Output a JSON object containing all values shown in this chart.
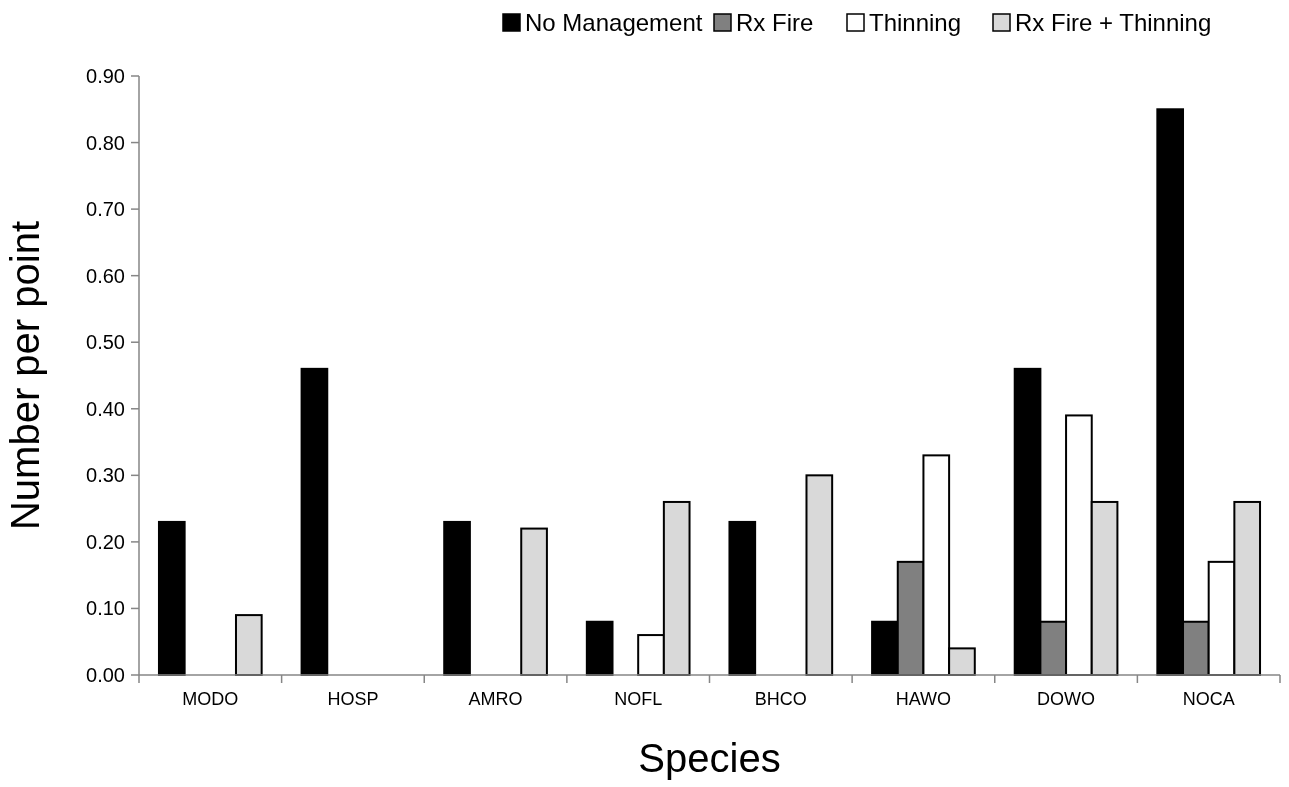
{
  "chart_data": {
    "type": "bar",
    "xlabel": "Species",
    "ylabel": "Number per point",
    "categories": [
      "MODO",
      "HOSP",
      "AMRO",
      "NOFL",
      "BHCO",
      "HAWO",
      "DOWO",
      "NOCA"
    ],
    "series": [
      {
        "name": "No Management",
        "color": "#000000",
        "values": [
          0.23,
          0.46,
          0.23,
          0.08,
          0.23,
          0.08,
          0.46,
          0.85
        ]
      },
      {
        "name": "Rx Fire",
        "color": "#808080",
        "values": [
          0,
          0,
          0,
          0,
          0,
          0.17,
          0.08,
          0.08
        ]
      },
      {
        "name": "Thinning",
        "color": "#ffffff",
        "values": [
          0,
          0,
          0,
          0.06,
          0,
          0.33,
          0.39,
          0.17
        ]
      },
      {
        "name": "Rx Fire + Thinning",
        "color": "#d9d9d9",
        "values": [
          0.09,
          0,
          0.22,
          0.26,
          0.3,
          0.04,
          0.26,
          0.26
        ]
      }
    ],
    "ylim": [
      0,
      0.9
    ],
    "yticks": [
      {
        "value": 0,
        "label": "0.00"
      },
      {
        "value": 0.1,
        "label": "0.10"
      },
      {
        "value": 0.2,
        "label": "0.20"
      },
      {
        "value": 0.3,
        "label": "0.30"
      },
      {
        "value": 0.4,
        "label": "0.40"
      },
      {
        "value": 0.5,
        "label": "0.50"
      },
      {
        "value": 0.6,
        "label": "0.60"
      },
      {
        "value": 0.7,
        "label": "0.70"
      },
      {
        "value": 0.8,
        "label": "0.80"
      },
      {
        "value": 0.9,
        "label": "0.90"
      }
    ],
    "legend": "top right",
    "grid": false
  }
}
